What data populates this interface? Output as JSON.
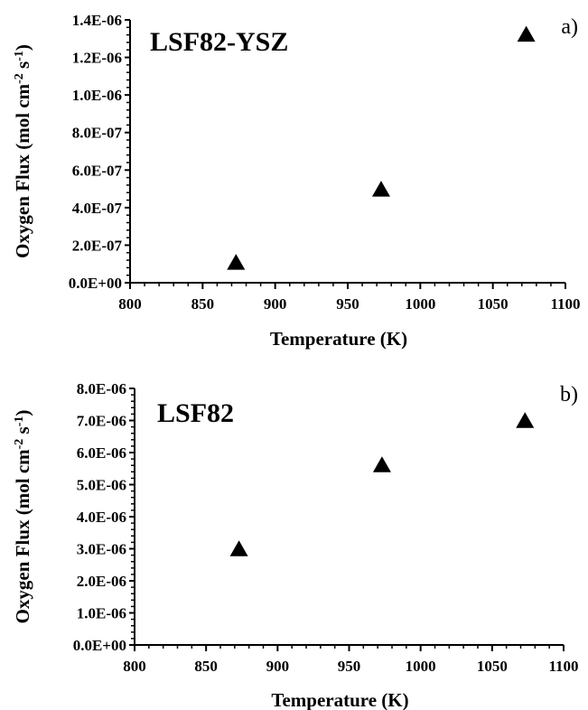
{
  "figure": {
    "panel_titles": [
      "LSF82-YSZ",
      "LSF82"
    ],
    "panel_letters": [
      "a)",
      "b)"
    ]
  },
  "chart_data": [
    {
      "type": "scatter",
      "title": "LSF82-YSZ",
      "panel_label": "a)",
      "xlabel": "Temperature (K)",
      "ylabel": "Oxygen Flux (mol cm-2 s-1)",
      "ylabel_parts": {
        "main": "Oxygen Flux (mol cm",
        "sup1": "-2",
        "mid": " s",
        "sup2": "-1",
        "end": ")"
      },
      "xlim": [
        800,
        1100
      ],
      "ylim": [
        0,
        1.4e-06
      ],
      "xticks": [
        "800",
        "850",
        "900",
        "950",
        "1000",
        "1050",
        "1100"
      ],
      "xtick_values": [
        800,
        850,
        900,
        950,
        1000,
        1050,
        1100
      ],
      "yticks": [
        "0.0E+00",
        "2.0E-07",
        "4.0E-07",
        "6.0E-07",
        "8.0E-07",
        "1.0E-06",
        "1.2E-06",
        "1.4E-06"
      ],
      "ytick_values": [
        0,
        2e-07,
        4e-07,
        6e-07,
        8e-07,
        1e-06,
        1.2e-06,
        1.4e-06
      ],
      "marker": "triangle",
      "marker_color": "#000000",
      "grid": false,
      "points": [
        {
          "x": 873,
          "y": 1.05e-07
        },
        {
          "x": 973,
          "y": 4.95e-07
        },
        {
          "x": 1073,
          "y": 1.32e-06
        }
      ]
    },
    {
      "type": "scatter",
      "title": "LSF82",
      "panel_label": "b)",
      "xlabel": "Temperature (K)",
      "ylabel": "Oxygen Flux (mol cm-2 s-1)",
      "ylabel_parts": {
        "main": "Oxygen Flux (mol cm",
        "sup1": "-2",
        "mid": " s",
        "sup2": "-1",
        "end": ")"
      },
      "xlim": [
        800,
        1100
      ],
      "ylim": [
        0,
        8e-06
      ],
      "xticks": [
        "800",
        "850",
        "900",
        "950",
        "1000",
        "1050",
        "1100"
      ],
      "xtick_values": [
        800,
        850,
        900,
        950,
        1000,
        1050,
        1100
      ],
      "yticks": [
        "0.0E+00",
        "1.0E-06",
        "2.0E-06",
        "3.0E-06",
        "4.0E-06",
        "5.0E-06",
        "6.0E-06",
        "7.0E-06",
        "8.0E-06"
      ],
      "ytick_values": [
        0,
        1e-06,
        2e-06,
        3e-06,
        4e-06,
        5e-06,
        6e-06,
        7e-06,
        8e-06
      ],
      "marker": "triangle",
      "marker_color": "#000000",
      "grid": false,
      "points": [
        {
          "x": 873,
          "y": 2.98e-06
        },
        {
          "x": 973,
          "y": 5.6e-06
        },
        {
          "x": 1073,
          "y": 6.98e-06
        }
      ]
    }
  ]
}
